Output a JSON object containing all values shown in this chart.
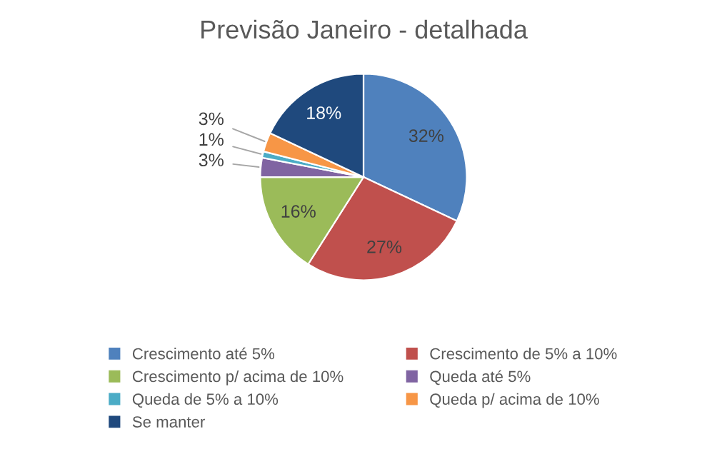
{
  "chart_data": {
    "type": "pie",
    "title": "Previsão Janeiro - detalhada",
    "categories": [
      "Crescimento até 5%",
      "Crescimento de 5% a 10%",
      "Crescimento p/ acima de 10%",
      "Queda até 5%",
      "Queda de 5% a 10%",
      "Queda p/ acima de 10%",
      "Se manter"
    ],
    "values": [
      32,
      27,
      16,
      3,
      1,
      3,
      18
    ],
    "value_labels": [
      "32%",
      "27%",
      "16%",
      "3%",
      "1%",
      "3%",
      "18%"
    ],
    "colors": [
      "#4f81bd",
      "#c0504d",
      "#9bbb59",
      "#8064a2",
      "#4bacc6",
      "#f79646",
      "#1f497d"
    ],
    "legend": "bottom"
  }
}
